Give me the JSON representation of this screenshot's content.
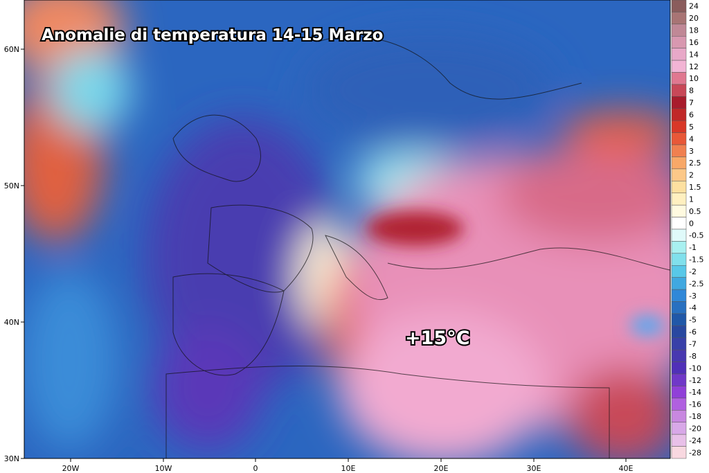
{
  "title": "Anomalie di temperatura 14-15 Marzo",
  "annotation": "+15°C",
  "lat_labels": [
    "60N",
    "50N",
    "40N",
    "30N"
  ],
  "lon_labels": [
    "20W",
    "10W",
    "0",
    "10E",
    "20E",
    "30E",
    "40E"
  ],
  "colorbar": [
    {
      "label": "24",
      "color": "#8a5c5c"
    },
    {
      "label": "20",
      "color": "#a87474"
    },
    {
      "label": "18",
      "color": "#c08896"
    },
    {
      "label": "16",
      "color": "#d898b0"
    },
    {
      "label": "14",
      "color": "#e8a8c8"
    },
    {
      "label": "12",
      "color": "#f2b4d4"
    },
    {
      "label": "10",
      "color": "#e07890"
    },
    {
      "label": "8",
      "color": "#c84858"
    },
    {
      "label": "7",
      "color": "#a81c2c"
    },
    {
      "label": "6",
      "color": "#c02828"
    },
    {
      "label": "5",
      "color": "#d83828"
    },
    {
      "label": "4",
      "color": "#e85838"
    },
    {
      "label": "3",
      "color": "#f08050"
    },
    {
      "label": "2.5",
      "color": "#f8a868"
    },
    {
      "label": "2",
      "color": "#fcc888"
    },
    {
      "label": "1.5",
      "color": "#fde0a0"
    },
    {
      "label": "1",
      "color": "#fff0c0"
    },
    {
      "label": "0.5",
      "color": "#fffae0"
    },
    {
      "label": "0",
      "color": "#ffffff"
    },
    {
      "label": "-0.5",
      "color": "#e0fafa"
    },
    {
      "label": "-1",
      "color": "#a8f0f0"
    },
    {
      "label": "-1.5",
      "color": "#80e0ec"
    },
    {
      "label": "-2",
      "color": "#58c8e8"
    },
    {
      "label": "-2.5",
      "color": "#40a8e0"
    },
    {
      "label": "-3",
      "color": "#3088d8"
    },
    {
      "label": "-4",
      "color": "#2870c0"
    },
    {
      "label": "-5",
      "color": "#2058a8"
    },
    {
      "label": "-6",
      "color": "#2848a0"
    },
    {
      "label": "-7",
      "color": "#3840a8"
    },
    {
      "label": "-8",
      "color": "#4838b0"
    },
    {
      "label": "-10",
      "color": "#5030b8"
    },
    {
      "label": "-12",
      "color": "#7038c8"
    },
    {
      "label": "-14",
      "color": "#9040d8"
    },
    {
      "label": "-16",
      "color": "#b060e0"
    },
    {
      "label": "-18",
      "color": "#c888e0"
    },
    {
      "label": "-20",
      "color": "#d8a8e8"
    },
    {
      "label": "-24",
      "color": "#e8c0e8"
    },
    {
      "label": "-28",
      "color": "#f8d8e0"
    }
  ]
}
